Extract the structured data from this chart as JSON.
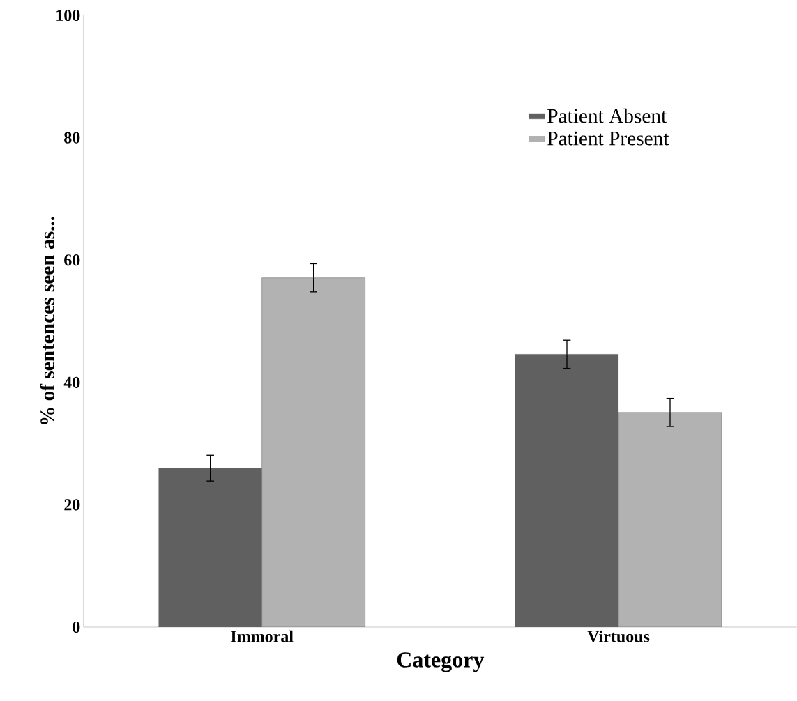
{
  "chart_data": {
    "type": "bar",
    "xlabel": "Category",
    "ylabel": "% of sentences seen as...",
    "categories": [
      "Immoral",
      "Virtuous"
    ],
    "series": [
      {
        "name": "Patient Absent",
        "color": "#606060",
        "values": [
          26.0,
          44.6
        ],
        "errors": [
          2.1,
          2.3
        ]
      },
      {
        "name": "Patient Present",
        "color": "#b2b2b2",
        "values": [
          57.1,
          35.1
        ],
        "errors": [
          2.3,
          2.3
        ]
      }
    ],
    "ylim": [
      0,
      100
    ],
    "yticks": [
      0,
      20,
      40,
      60,
      80,
      100
    ],
    "legend": "top right"
  }
}
